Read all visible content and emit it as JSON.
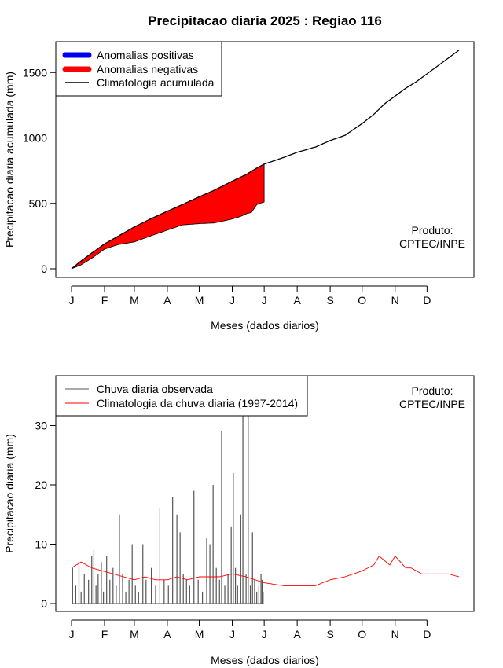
{
  "title": "Precipitacao diaria 2025 : Regiao 116",
  "month_ticks": [
    "J",
    "F",
    "M",
    "A",
    "M",
    "J",
    "J",
    "A",
    "S",
    "O",
    "N",
    "D"
  ],
  "colors": {
    "positive": "#0000ee",
    "negative": "#ff0000",
    "climatology_cumulative": "#000000",
    "observed_daily": "#555555",
    "climatology_daily": "#ff0000"
  },
  "chart_data": [
    {
      "type": "area",
      "xlabel": "Meses (dados diarios)",
      "ylabel": "Precipitacao diaria acumulada (mm)",
      "ylim": [
        0,
        1700
      ],
      "yticks": [
        0,
        500,
        1000,
        1500
      ],
      "xlim_days": [
        1,
        365
      ],
      "legend": {
        "position": "top-left",
        "entries": [
          "Anomalias positivas",
          "Anomalias negativas",
          "Climatologia acumulada"
        ]
      },
      "annotation": [
        "Produto:",
        "CPTEC/INPE"
      ],
      "climatology_cumulative": {
        "day": [
          1,
          10,
          20,
          32,
          45,
          60,
          75,
          91,
          105,
          121,
          135,
          152,
          165,
          175,
          182,
          200,
          213,
          230,
          244,
          258,
          274,
          285,
          295,
          305,
          315,
          325,
          335,
          345,
          355,
          365
        ],
        "value": [
          0,
          60,
          120,
          190,
          250,
          320,
          380,
          440,
          490,
          550,
          600,
          670,
          720,
          770,
          800,
          850,
          890,
          930,
          980,
          1020,
          1110,
          1180,
          1260,
          1320,
          1380,
          1430,
          1490,
          1550,
          1610,
          1670
        ]
      },
      "observed_cumulative": {
        "day": [
          1,
          10,
          20,
          32,
          45,
          60,
          75,
          91,
          105,
          121,
          135,
          152,
          160,
          165,
          170,
          175,
          178,
          182
        ],
        "value": [
          0,
          30,
          80,
          150,
          185,
          205,
          250,
          295,
          335,
          345,
          350,
          380,
          400,
          420,
          430,
          490,
          500,
          510
        ]
      },
      "negative_anomaly": {
        "from_day": 1,
        "to_day": 182
      }
    },
    {
      "type": "bar",
      "xlabel": "Meses (dados diarios)",
      "ylabel": "Precipitacao diaria (mm)",
      "ylim": [
        0,
        38
      ],
      "yticks": [
        0,
        10,
        20,
        30
      ],
      "xlim_days": [
        1,
        365
      ],
      "legend": {
        "position": "top-left",
        "entries": [
          "Chuva diaria observada",
          "Climatologia da chuva diaria (1997-2014)"
        ]
      },
      "annotation": [
        "Produto:",
        "CPTEC/INPE"
      ],
      "observed_daily": {
        "day": [
          2,
          5,
          8,
          10,
          13,
          17,
          20,
          22,
          24,
          26,
          29,
          31,
          34,
          37,
          40,
          43,
          46,
          49,
          52,
          55,
          58,
          61,
          64,
          68,
          71,
          76,
          80,
          84,
          88,
          92,
          96,
          100,
          103,
          106,
          109,
          112,
          116,
          120,
          124,
          128,
          131,
          134,
          137,
          140,
          142,
          145,
          148,
          151,
          153,
          155,
          157,
          160,
          162,
          165,
          167,
          169,
          171,
          173,
          175,
          177,
          179,
          180,
          181
        ],
        "value": [
          6,
          3,
          7,
          2,
          5,
          4,
          8,
          9,
          3,
          5,
          7,
          2,
          8,
          4,
          6,
          3,
          15,
          5,
          2,
          4,
          10,
          3,
          2,
          10,
          4,
          6,
          3,
          16,
          4,
          3,
          18,
          15,
          12,
          5,
          4,
          3,
          19,
          4,
          2,
          11,
          10,
          20,
          6,
          4,
          29,
          3,
          5,
          13,
          22,
          6,
          3,
          15,
          40,
          5,
          40,
          3,
          12,
          4,
          2,
          3,
          5,
          4,
          2
        ]
      },
      "climatology_daily": {
        "day": [
          1,
          10,
          20,
          30,
          40,
          50,
          60,
          70,
          80,
          91,
          100,
          110,
          121,
          130,
          140,
          152,
          165,
          182,
          200,
          213,
          230,
          244,
          258,
          274,
          285,
          290,
          300,
          305,
          315,
          320,
          330,
          345,
          355,
          365
        ],
        "value": [
          6,
          7,
          6,
          5.5,
          5,
          4.5,
          4,
          4.5,
          4,
          4,
          4.5,
          4,
          4.5,
          4.5,
          4.5,
          5,
          4.5,
          3.5,
          3,
          3,
          3,
          4,
          4.5,
          5.5,
          6.5,
          8,
          6.5,
          8,
          6,
          6,
          5,
          5,
          5,
          4.5
        ]
      }
    }
  ]
}
